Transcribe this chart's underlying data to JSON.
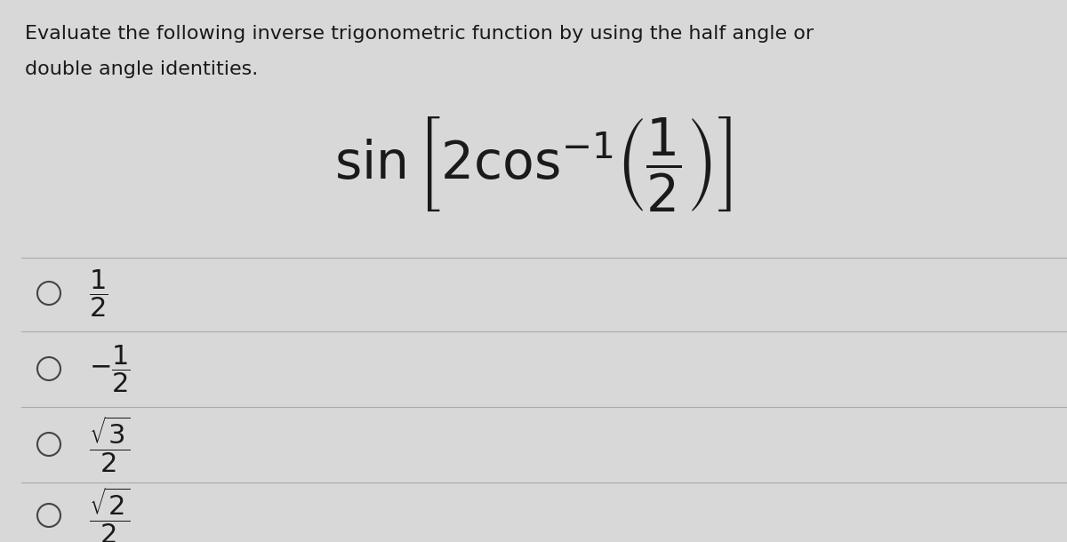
{
  "background_color": "#d8d8d8",
  "instruction_line1": "Evaluate the following inverse trigonometric function by using the half angle or",
  "instruction_line2": "double angle identities.",
  "main_formula": "$\\sin\\left[2\\cos^{-1}\\!\\left(\\dfrac{1}{2}\\right)\\right]$",
  "options": [
    "$\\dfrac{1}{2}$",
    "$-\\dfrac{1}{2}$",
    "$\\dfrac{\\sqrt{3}}{2}$",
    "$\\dfrac{\\sqrt{2}}{2}$"
  ],
  "instruction_fontsize": 16,
  "formula_fontsize": 42,
  "option_fontsize": 22,
  "text_color": "#1a1a1a",
  "line_color": "#aaaaaa",
  "circle_color": "#444444",
  "fig_width": 12.0,
  "fig_height": 6.1
}
